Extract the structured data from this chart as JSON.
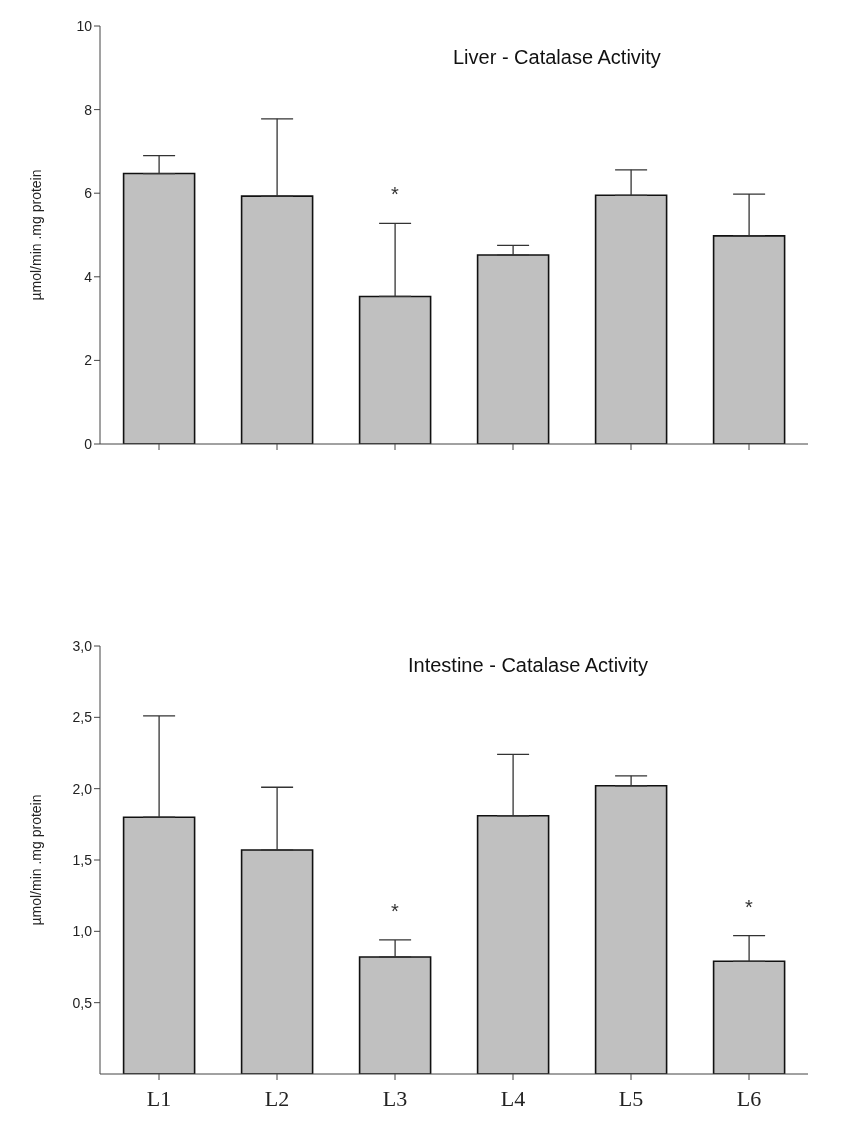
{
  "chart_data": [
    {
      "type": "bar",
      "title": "Liver - Catalase Activity",
      "ylabel": "µmol/min .mg protein",
      "categories": [
        "L1",
        "L2",
        "L3",
        "L4",
        "L5",
        "L6"
      ],
      "values": [
        6.47,
        5.93,
        3.53,
        4.52,
        5.95,
        4.98
      ],
      "errors": [
        [
          6.47,
          6.9
        ],
        [
          5.93,
          7.78
        ],
        [
          3.53,
          5.28
        ],
        [
          4.52,
          4.75
        ],
        [
          5.95,
          6.56
        ],
        [
          4.98,
          5.98
        ]
      ],
      "color": "#c0c0c0",
      "ylim": [
        0,
        10
      ],
      "yticks": [
        0,
        2,
        4,
        6,
        8,
        10
      ],
      "tick_labels": "y",
      "annotations": [
        {
          "text": "*",
          "x": "L3",
          "y": 5.28
        }
      ]
    },
    {
      "type": "bar",
      "title": "Intestine - Catalase Activity",
      "ylabel": "µmol/min .mg protein",
      "categories": [
        "L1",
        "L2",
        "L3",
        "L4",
        "L5",
        "L6"
      ],
      "values": [
        1.8,
        1.57,
        0.82,
        1.81,
        2.02,
        0.79
      ],
      "errors": [
        [
          1.8,
          2.51
        ],
        [
          1.57,
          2.01
        ],
        [
          0.82,
          0.94
        ],
        [
          1.81,
          2.24
        ],
        [
          2.02,
          2.09
        ],
        [
          0.79,
          0.97
        ]
      ],
      "color": "#c0c0c0",
      "ylim": [
        0,
        3
      ],
      "yticks": [
        {
          "value": 0.5,
          "label": "0,5"
        },
        {
          "value": 1,
          "label": "1,0"
        },
        {
          "value": 1.5,
          "label": "1,5"
        },
        {
          "value": 2,
          "label": "2,0"
        },
        {
          "value": 2.5,
          "label": "2,5"
        },
        {
          "value": 3,
          "label": "3,0"
        }
      ],
      "annotations": [
        {
          "text": "*",
          "x": "L3",
          "y": 0.94
        },
        {
          "text": "*",
          "x": "L6",
          "y": 0.97
        }
      ]
    }
  ]
}
